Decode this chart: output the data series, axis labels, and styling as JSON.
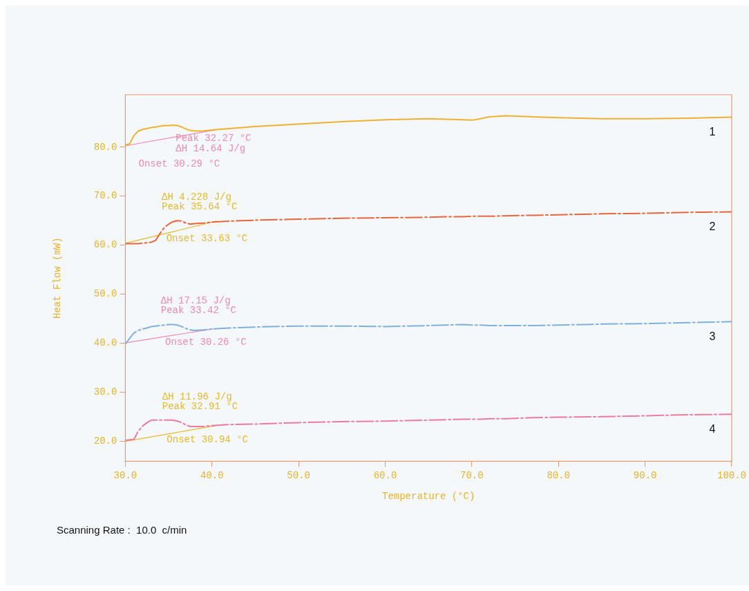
{
  "chart_data": {
    "type": "line",
    "xlabel": "Temperature (°C)",
    "ylabel": "Heat Flow (mW)",
    "xlim": [
      30,
      100
    ],
    "ylim": [
      15.9,
      90.7
    ],
    "xticks": [
      {
        "value": 30,
        "label": "30.0"
      },
      {
        "value": 40,
        "label": "40.0"
      },
      {
        "value": 50,
        "label": "50.0"
      },
      {
        "value": 60,
        "label": "60.0"
      },
      {
        "value": 70,
        "label": "70.0"
      },
      {
        "value": 80,
        "label": "80.0"
      },
      {
        "value": 90,
        "label": "90.0"
      },
      {
        "value": 100,
        "label": "100.0"
      }
    ],
    "yticks": [
      {
        "value": 20,
        "label": "20.0"
      },
      {
        "value": 30,
        "label": "30.0"
      },
      {
        "value": 40,
        "label": "40.0"
      },
      {
        "value": 50,
        "label": "50.0"
      },
      {
        "value": 60,
        "label": "60.0"
      },
      {
        "value": 70,
        "label": "70.0"
      },
      {
        "value": 80,
        "label": "80.0"
      }
    ],
    "grid": false,
    "legend": false,
    "marker": "none",
    "x": [
      30,
      30.5,
      31,
      31.5,
      32,
      32.5,
      33,
      33.5,
      34,
      34.5,
      35,
      35.5,
      36,
      36.5,
      37,
      37.5,
      38,
      39,
      40,
      42,
      45,
      50,
      55,
      60,
      65,
      67,
      69,
      70,
      71,
      72,
      74,
      77,
      80,
      85,
      90,
      95,
      100
    ],
    "series": [
      {
        "name": "1",
        "color": "#f0b030",
        "line_style": "solid",
        "values": [
          80.4,
          80.7,
          82.4,
          83.3,
          83.6,
          83.8,
          84.0,
          84.1,
          84.3,
          84.4,
          84.4,
          84.5,
          84.4,
          84.1,
          83.7,
          83.4,
          83.3,
          83.3,
          83.5,
          83.8,
          84.2,
          84.7,
          85.2,
          85.6,
          85.8,
          85.7,
          85.6,
          85.5,
          85.8,
          86.2,
          86.4,
          86.2,
          86.0,
          85.8,
          85.8,
          85.9,
          86.1
        ]
      },
      {
        "name": "2",
        "color": "#e8643a",
        "line_style": "dashed",
        "values": [
          60.3,
          60.3,
          60.3,
          60.3,
          60.4,
          60.5,
          60.6,
          61.0,
          62.4,
          63.6,
          64.3,
          64.8,
          65.0,
          64.9,
          64.5,
          64.3,
          64.4,
          64.5,
          64.7,
          64.9,
          65.1,
          65.3,
          65.5,
          65.6,
          65.7,
          65.8,
          65.8,
          65.9,
          65.9,
          65.9,
          66.0,
          66.1,
          66.2,
          66.4,
          66.5,
          66.7,
          66.8
        ]
      },
      {
        "name": "3",
        "color": "#7fb0dc",
        "line_style": "dashed",
        "values": [
          39.8,
          41.0,
          42.1,
          42.6,
          42.9,
          43.1,
          43.4,
          43.5,
          43.6,
          43.7,
          43.8,
          43.8,
          43.7,
          43.4,
          43.0,
          42.7,
          42.6,
          42.7,
          42.9,
          43.1,
          43.3,
          43.5,
          43.5,
          43.4,
          43.6,
          43.7,
          43.8,
          43.7,
          43.7,
          43.6,
          43.6,
          43.6,
          43.7,
          43.9,
          44.0,
          44.2,
          44.4
        ]
      },
      {
        "name": "4",
        "color": "#ec7a9c",
        "line_style": "dashed",
        "values": [
          20.2,
          20.3,
          20.4,
          22.1,
          23.1,
          23.8,
          24.3,
          24.3,
          24.3,
          24.3,
          24.3,
          24.3,
          24.1,
          23.8,
          23.3,
          23.0,
          23.0,
          23.0,
          23.2,
          23.4,
          23.5,
          23.8,
          24.0,
          24.1,
          24.3,
          24.4,
          24.5,
          24.5,
          24.5,
          24.6,
          24.6,
          24.8,
          24.9,
          25.0,
          25.2,
          25.4,
          25.5
        ]
      },
      {
        "type": "line",
        "color": "#ee88b0",
        "line_style": "solid",
        "x": [
          30.1,
          40.3
        ],
        "values": [
          80.3,
          83.5
        ]
      },
      {
        "type": "line",
        "color": "#e8b828",
        "line_style": "solid",
        "x": [
          30,
          40.5
        ],
        "values": [
          60.4,
          64.9
        ]
      },
      {
        "type": "line",
        "color": "#ee88b0",
        "line_style": "solid",
        "x": [
          30.1,
          40.1
        ],
        "values": [
          40.1,
          42.9
        ]
      },
      {
        "type": "line",
        "color": "#e8b828",
        "line_style": "solid",
        "x": [
          30.1,
          40.5
        ],
        "values": [
          20.0,
          23.2
        ]
      }
    ],
    "annotations": [
      "Peak 32.27 °C",
      "ΔH 14.64 J/g",
      "Onset 30.29 °C",
      "ΔH 4.228 J/g",
      "Peak 35.64 °C",
      "Onset 33.63 °C",
      "ΔH 17.15 J/g",
      "Peak 33.42 °C",
      "Onset 30.26 °C",
      "ΔH 11.96 J/g",
      "Peak 32.91 °C",
      "Onset 30.94 °C",
      "Scanning Rate :  10.0  c/min"
    ]
  }
}
